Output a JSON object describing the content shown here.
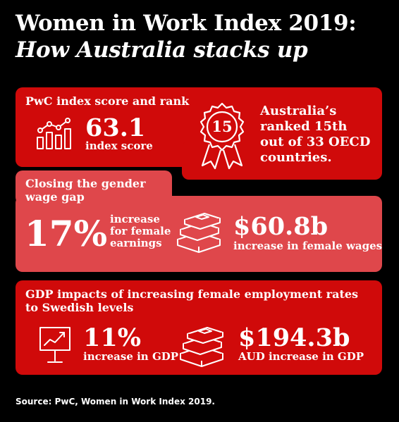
{
  "title": {
    "line1": "Women in Work Index 2019:",
    "line2": "How Australia stacks up"
  },
  "section1": {
    "heading": "PwC index score and rank",
    "score_value": "63.1",
    "score_label": "index score",
    "badge_number": "15",
    "rank_line1": "Australia’s",
    "rank_line2": "ranked 15th",
    "rank_line3": "out of 33 OECD",
    "rank_line4": "countries."
  },
  "section2": {
    "heading_line1": "Closing the gender",
    "heading_line2": "wage gap",
    "percent_value": "17%",
    "percent_label_line1": "increase",
    "percent_label_line2": "for female",
    "percent_label_line3": "earnings",
    "wages_value": "$60.8b",
    "wages_label": "increase in female wages"
  },
  "section3": {
    "heading_line1": "GDP impacts of increasing female employment rates",
    "heading_line2": "to Swedish levels",
    "gdp_percent_value": "11%",
    "gdp_percent_label": "increase in GDP",
    "gdp_amount_value": "$194.3b",
    "gdp_amount_label": "AUD increase in GDP"
  },
  "source": "Source: PwC, Women in Work Index 2019.",
  "colors": {
    "background": "#000000",
    "red": "#d00a0a",
    "pink": "#df474b",
    "text": "#ffffff"
  },
  "icons": [
    "bar-chart-icon",
    "award-ribbon-icon",
    "money-stack-icon",
    "presentation-board-icon",
    "money-stack-icon"
  ]
}
